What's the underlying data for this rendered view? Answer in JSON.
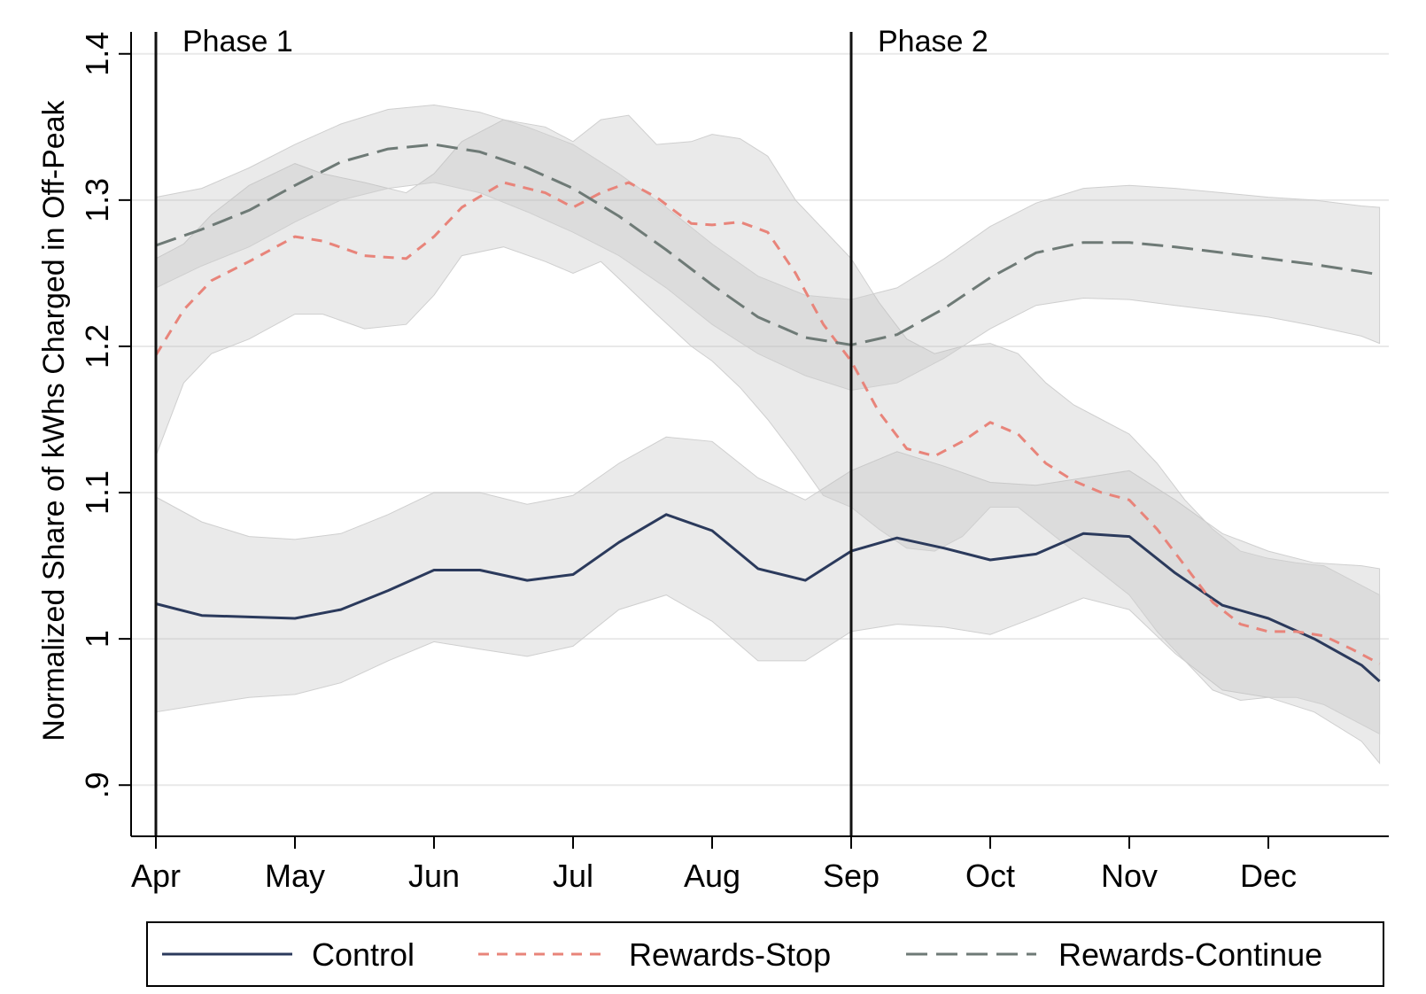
{
  "chart_data": {
    "type": "line",
    "xlabel": "",
    "ylabel": "Normalized Share of kWhs Charged in Off-Peak",
    "ylim": [
      0.865,
      1.415
    ],
    "xlim": [
      -0.02,
      8.9
    ],
    "grid": true,
    "y_ticks": [
      {
        "value": 0.9,
        "label": ".9"
      },
      {
        "value": 1.0,
        "label": "1"
      },
      {
        "value": 1.1,
        "label": "1.1"
      },
      {
        "value": 1.2,
        "label": "1.2"
      },
      {
        "value": 1.3,
        "label": "1.3"
      },
      {
        "value": 1.4,
        "label": "1.4"
      }
    ],
    "x_ticks": [
      {
        "value": 0,
        "label": "Apr"
      },
      {
        "value": 1,
        "label": "May"
      },
      {
        "value": 2,
        "label": "Jun"
      },
      {
        "value": 3,
        "label": "Jul"
      },
      {
        "value": 4,
        "label": "Aug"
      },
      {
        "value": 5,
        "label": "Sep"
      },
      {
        "value": 6,
        "label": "Oct"
      },
      {
        "value": 7,
        "label": "Nov"
      },
      {
        "value": 8,
        "label": "Dec"
      }
    ],
    "phase_markers": [
      {
        "x": 0,
        "label": "Phase 1"
      },
      {
        "x": 5,
        "label": "Phase 2"
      }
    ],
    "legend": {
      "position": "bottom",
      "border": true
    },
    "series": [
      {
        "name": "Control",
        "color": "#2b3a5c",
        "dash": "solid",
        "x": [
          0,
          0.33,
          0.67,
          1,
          1.33,
          1.67,
          2,
          2.33,
          2.67,
          3,
          3.33,
          3.67,
          4,
          4.33,
          4.67,
          5,
          5.33,
          5.67,
          6,
          6.33,
          6.67,
          7,
          7.33,
          7.67,
          8,
          8.33,
          8.67,
          8.8
        ],
        "y": [
          1.024,
          1.016,
          1.015,
          1.014,
          1.02,
          1.033,
          1.047,
          1.047,
          1.04,
          1.044,
          1.066,
          1.085,
          1.074,
          1.048,
          1.04,
          1.06,
          1.069,
          1.062,
          1.054,
          1.058,
          1.072,
          1.07,
          1.045,
          1.023,
          1.014,
          1.0,
          0.982,
          0.971
        ],
        "ci_low": [
          0.95,
          0.955,
          0.96,
          0.962,
          0.97,
          0.985,
          0.998,
          0.993,
          0.988,
          0.995,
          1.02,
          1.03,
          1.012,
          0.985,
          0.985,
          1.005,
          1.01,
          1.008,
          1.003,
          1.015,
          1.028,
          1.02,
          0.99,
          0.965,
          0.96,
          0.95,
          0.93,
          0.915
        ],
        "ci_high": [
          1.097,
          1.08,
          1.07,
          1.068,
          1.072,
          1.085,
          1.1,
          1.1,
          1.092,
          1.098,
          1.12,
          1.138,
          1.135,
          1.11,
          1.095,
          1.115,
          1.128,
          1.118,
          1.107,
          1.105,
          1.11,
          1.115,
          1.095,
          1.072,
          1.06,
          1.052,
          1.05,
          1.048
        ]
      },
      {
        "name": "Rewards-Stop",
        "color": "#e8847a",
        "dash": "dashed",
        "x": [
          0,
          0.2,
          0.4,
          0.67,
          1,
          1.2,
          1.5,
          1.8,
          2,
          2.2,
          2.5,
          2.8,
          3,
          3.2,
          3.4,
          3.6,
          3.85,
          4,
          4.2,
          4.4,
          4.6,
          4.8,
          5,
          5.2,
          5.4,
          5.6,
          5.8,
          6,
          6.2,
          6.4,
          6.6,
          6.8,
          7,
          7.2,
          7.4,
          7.6,
          7.8,
          8,
          8.2,
          8.4,
          8.6,
          8.8
        ],
        "y": [
          1.194,
          1.225,
          1.245,
          1.258,
          1.275,
          1.272,
          1.262,
          1.26,
          1.275,
          1.295,
          1.312,
          1.305,
          1.295,
          1.305,
          1.312,
          1.302,
          1.284,
          1.283,
          1.285,
          1.278,
          1.25,
          1.215,
          1.19,
          1.155,
          1.13,
          1.125,
          1.135,
          1.148,
          1.14,
          1.12,
          1.108,
          1.1,
          1.095,
          1.075,
          1.05,
          1.025,
          1.01,
          1.005,
          1.005,
          1.002,
          0.993,
          0.983
        ],
        "ci_low": [
          1.125,
          1.175,
          1.195,
          1.205,
          1.222,
          1.222,
          1.212,
          1.215,
          1.235,
          1.262,
          1.268,
          1.258,
          1.25,
          1.258,
          1.24,
          1.222,
          1.2,
          1.19,
          1.172,
          1.15,
          1.125,
          1.098,
          1.09,
          1.075,
          1.062,
          1.06,
          1.07,
          1.09,
          1.09,
          1.075,
          1.06,
          1.045,
          1.03,
          1.005,
          0.985,
          0.965,
          0.958,
          0.96,
          0.96,
          0.955,
          0.945,
          0.935
        ],
        "ci_high": [
          1.26,
          1.27,
          1.29,
          1.31,
          1.325,
          1.318,
          1.312,
          1.305,
          1.318,
          1.34,
          1.355,
          1.35,
          1.34,
          1.355,
          1.358,
          1.338,
          1.34,
          1.345,
          1.342,
          1.33,
          1.3,
          1.28,
          1.26,
          1.23,
          1.205,
          1.195,
          1.2,
          1.202,
          1.195,
          1.175,
          1.16,
          1.15,
          1.14,
          1.12,
          1.095,
          1.075,
          1.06,
          1.055,
          1.052,
          1.05,
          1.04,
          1.03
        ]
      },
      {
        "name": "Rewards-Continue",
        "color": "#6e7a76",
        "dash": "longdash",
        "x": [
          0,
          0.33,
          0.67,
          1,
          1.33,
          1.67,
          2,
          2.33,
          2.67,
          3,
          3.33,
          3.67,
          4,
          4.33,
          4.67,
          5,
          5.33,
          5.67,
          6,
          6.33,
          6.67,
          7,
          7.33,
          7.67,
          8,
          8.33,
          8.67,
          8.8
        ],
        "y": [
          1.269,
          1.28,
          1.293,
          1.31,
          1.326,
          1.335,
          1.338,
          1.333,
          1.322,
          1.308,
          1.289,
          1.266,
          1.242,
          1.22,
          1.206,
          1.201,
          1.208,
          1.226,
          1.247,
          1.264,
          1.271,
          1.271,
          1.268,
          1.264,
          1.26,
          1.256,
          1.251,
          1.249
        ],
        "ci_low": [
          1.24,
          1.255,
          1.268,
          1.285,
          1.3,
          1.308,
          1.312,
          1.305,
          1.292,
          1.278,
          1.262,
          1.24,
          1.215,
          1.195,
          1.18,
          1.17,
          1.175,
          1.192,
          1.212,
          1.228,
          1.233,
          1.232,
          1.228,
          1.224,
          1.22,
          1.214,
          1.207,
          1.202
        ],
        "ci_high": [
          1.302,
          1.308,
          1.322,
          1.338,
          1.352,
          1.362,
          1.365,
          1.36,
          1.35,
          1.338,
          1.318,
          1.295,
          1.27,
          1.248,
          1.235,
          1.232,
          1.24,
          1.26,
          1.282,
          1.298,
          1.308,
          1.31,
          1.308,
          1.305,
          1.302,
          1.3,
          1.296,
          1.295
        ]
      }
    ]
  }
}
